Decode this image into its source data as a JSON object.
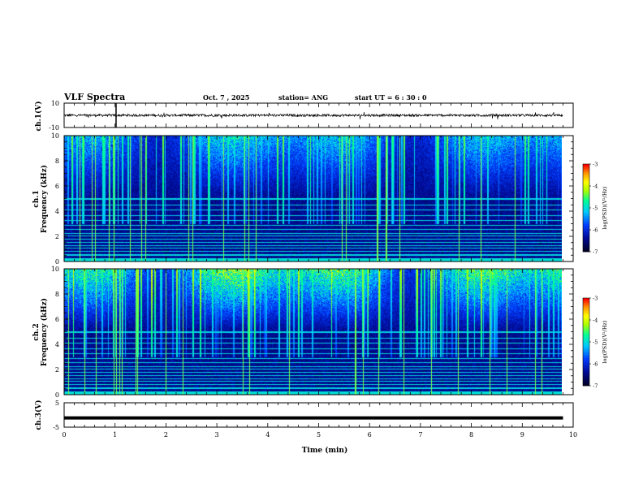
{
  "header": {
    "title": "VLF Spectra",
    "date": "Oct. 7 , 2025",
    "station": "station= ANG",
    "start_ut": "start UT =  6 : 30 : 0"
  },
  "chart_data": [
    {
      "type": "line",
      "name": "ch1-waveform",
      "ylabel": "ch.1(V)",
      "ylim": [
        -10,
        10
      ],
      "yticks": [
        "10",
        "-10"
      ],
      "baseline": 0,
      "amplitude_approx": 1
    },
    {
      "type": "heatmap",
      "name": "ch1-spectrogram",
      "ylabel_line1": "ch.1",
      "ylabel_line2": "Frequency (kHz)",
      "ylim": [
        0,
        10
      ],
      "yticks": [
        "0",
        "2",
        "4",
        "6",
        "8",
        "10"
      ],
      "colorbar": {
        "label": "log(PSD)(V²/Hz)",
        "range": [
          -7,
          -3
        ],
        "ticks": [
          "-3",
          "-4",
          "-5",
          "-6",
          "-7"
        ]
      },
      "description_levels": {
        "background": -6.8,
        "upper_band_max": -4.5
      }
    },
    {
      "type": "heatmap",
      "name": "ch2-spectrogram",
      "ylabel_line1": "ch.2",
      "ylabel_line2": "Frequency (kHz)",
      "ylim": [
        0,
        10
      ],
      "yticks": [
        "0",
        "2",
        "4",
        "6",
        "8",
        "10"
      ],
      "colorbar": {
        "label": "log(PSD)(V²/Hz)",
        "range": [
          -7,
          -3
        ],
        "ticks": [
          "-3",
          "-4",
          "-5",
          "-6",
          "-7"
        ]
      },
      "description_levels": {
        "background": -6.8,
        "upper_band_max": -3.3
      }
    },
    {
      "type": "line",
      "name": "ch3-waveform",
      "ylabel": "ch.3(V)",
      "ylim": [
        -5,
        5
      ],
      "yticks": [
        "5",
        "-5"
      ],
      "baseline": -1.2
    }
  ],
  "x_axis": {
    "label": "Time (min)",
    "range": [
      0,
      10
    ],
    "ticks": [
      "0",
      "1",
      "2",
      "3",
      "4",
      "5",
      "6",
      "7",
      "8",
      "9",
      "10"
    ],
    "data_end": 9.8
  },
  "colors": {
    "axis": "#000000",
    "colormap": [
      "#000020",
      "#0010a0",
      "#0050ff",
      "#00c8ff",
      "#00ff9a",
      "#a8ff00",
      "#ffff00",
      "#ff9a00",
      "#ff0000",
      "#ffffff"
    ]
  }
}
